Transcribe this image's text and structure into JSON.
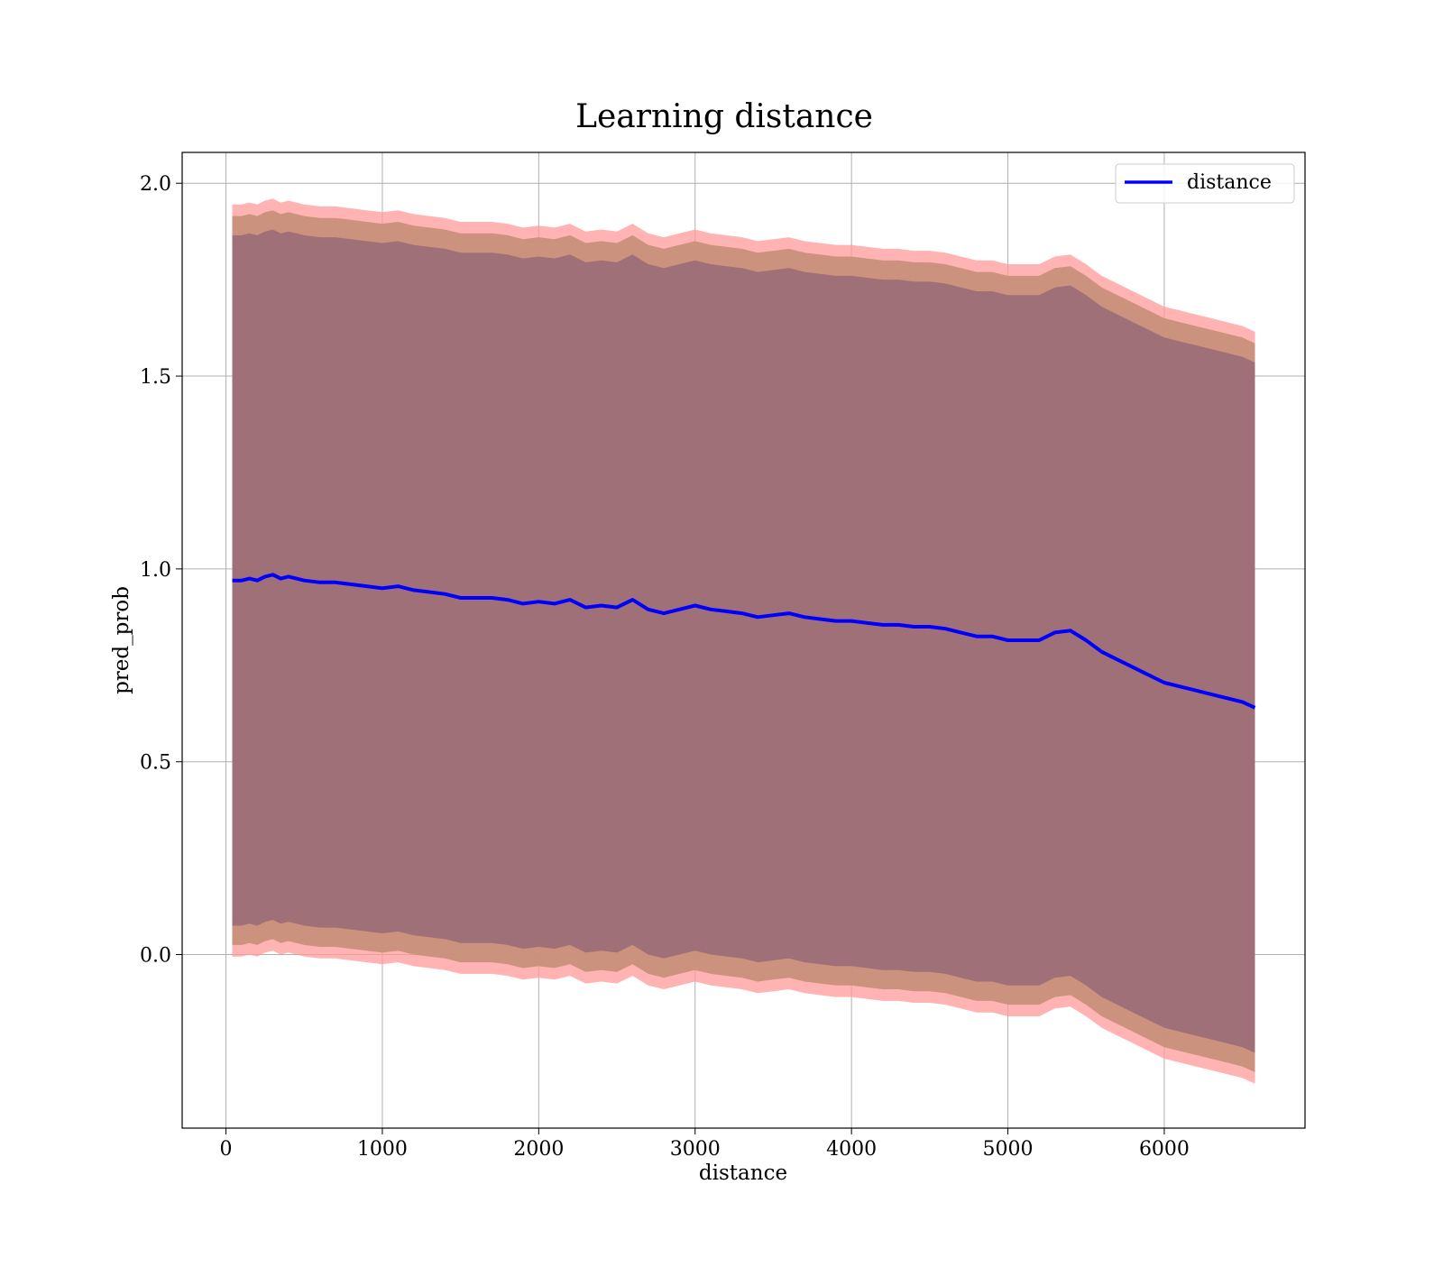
{
  "chart_data": {
    "type": "line",
    "title": "Learning distance",
    "xlabel": "distance",
    "ylabel": "pred_prob",
    "xlim": [
      -280,
      6900
    ],
    "ylim": [
      -0.45,
      2.08
    ],
    "xticks": [
      0,
      1000,
      2000,
      3000,
      4000,
      5000,
      6000
    ],
    "yticks": [
      0.0,
      0.5,
      1.0,
      1.5,
      2.0
    ],
    "xtick_labels": [
      "0",
      "1000",
      "2000",
      "3000",
      "4000",
      "5000",
      "6000"
    ],
    "ytick_labels": [
      "0.0",
      "0.5",
      "1.0",
      "1.5",
      "2.0"
    ],
    "grid": true,
    "legend": {
      "position": "top-right",
      "entries": [
        "distance"
      ]
    },
    "colors": {
      "line": "#0000ff",
      "outer_band": "#ff9999",
      "middle_band": "#c8907a",
      "inner_band": "#a07078"
    },
    "series": [
      {
        "name": "distance",
        "x": [
          40,
          100,
          150,
          200,
          250,
          300,
          350,
          400,
          450,
          500,
          600,
          700,
          800,
          900,
          1000,
          1100,
          1200,
          1300,
          1400,
          1500,
          1600,
          1700,
          1800,
          1900,
          2000,
          2100,
          2200,
          2300,
          2400,
          2500,
          2600,
          2700,
          2800,
          2900,
          3000,
          3100,
          3200,
          3300,
          3400,
          3500,
          3600,
          3700,
          3800,
          3900,
          4000,
          4100,
          4200,
          4300,
          4400,
          4500,
          4600,
          4700,
          4800,
          4900,
          5000,
          5100,
          5200,
          5300,
          5400,
          5500,
          5600,
          5700,
          5800,
          5900,
          6000,
          6100,
          6200,
          6300,
          6400,
          6500,
          6580
        ],
        "values": [
          0.97,
          0.97,
          0.975,
          0.97,
          0.98,
          0.985,
          0.975,
          0.98,
          0.975,
          0.97,
          0.965,
          0.965,
          0.96,
          0.955,
          0.95,
          0.955,
          0.945,
          0.94,
          0.935,
          0.925,
          0.925,
          0.925,
          0.92,
          0.91,
          0.915,
          0.91,
          0.92,
          0.9,
          0.905,
          0.9,
          0.92,
          0.895,
          0.885,
          0.895,
          0.905,
          0.895,
          0.89,
          0.885,
          0.875,
          0.88,
          0.885,
          0.875,
          0.87,
          0.865,
          0.865,
          0.86,
          0.855,
          0.855,
          0.85,
          0.85,
          0.845,
          0.835,
          0.825,
          0.825,
          0.815,
          0.815,
          0.815,
          0.835,
          0.84,
          0.815,
          0.785,
          0.765,
          0.745,
          0.725,
          0.705,
          0.695,
          0.685,
          0.675,
          0.665,
          0.655,
          0.64
        ]
      }
    ],
    "bands": [
      {
        "role": "outer",
        "offset": [
          0.975,
          0.975,
          0.975,
          0.975,
          0.975,
          0.975,
          0.975,
          0.975,
          0.975,
          0.975,
          0.975,
          0.975,
          0.975,
          0.975,
          0.975,
          0.975,
          0.975,
          0.975,
          0.975,
          0.975,
          0.975,
          0.975,
          0.975,
          0.975,
          0.975,
          0.975,
          0.975,
          0.975,
          0.975,
          0.975,
          0.975,
          0.975,
          0.975,
          0.975,
          0.975,
          0.975,
          0.975,
          0.975,
          0.975,
          0.975,
          0.975,
          0.975,
          0.975,
          0.975,
          0.975,
          0.975,
          0.975,
          0.975,
          0.975,
          0.975,
          0.975,
          0.975,
          0.975,
          0.975,
          0.975,
          0.975,
          0.975,
          0.975,
          0.975,
          0.975,
          0.975,
          0.975,
          0.975,
          0.975,
          0.975,
          0.975,
          0.975,
          0.975,
          0.975,
          0.975,
          0.975
        ]
      },
      {
        "role": "middle",
        "offset": [
          0.945,
          0.945,
          0.945,
          0.945,
          0.945,
          0.945,
          0.945,
          0.945,
          0.945,
          0.945,
          0.945,
          0.945,
          0.945,
          0.945,
          0.945,
          0.945,
          0.945,
          0.945,
          0.945,
          0.945,
          0.945,
          0.945,
          0.945,
          0.945,
          0.945,
          0.945,
          0.945,
          0.945,
          0.945,
          0.945,
          0.945,
          0.945,
          0.945,
          0.945,
          0.945,
          0.945,
          0.945,
          0.945,
          0.945,
          0.945,
          0.945,
          0.945,
          0.945,
          0.945,
          0.945,
          0.945,
          0.945,
          0.945,
          0.945,
          0.945,
          0.945,
          0.945,
          0.945,
          0.945,
          0.945,
          0.945,
          0.945,
          0.945,
          0.945,
          0.945,
          0.945,
          0.945,
          0.945,
          0.945,
          0.945,
          0.945,
          0.945,
          0.945,
          0.945,
          0.945,
          0.945
        ]
      },
      {
        "role": "inner",
        "offset": [
          0.895,
          0.895,
          0.895,
          0.895,
          0.895,
          0.895,
          0.895,
          0.895,
          0.895,
          0.895,
          0.895,
          0.895,
          0.895,
          0.895,
          0.895,
          0.895,
          0.895,
          0.895,
          0.895,
          0.895,
          0.895,
          0.895,
          0.895,
          0.895,
          0.895,
          0.895,
          0.895,
          0.895,
          0.895,
          0.895,
          0.895,
          0.895,
          0.895,
          0.895,
          0.895,
          0.895,
          0.895,
          0.895,
          0.895,
          0.895,
          0.895,
          0.895,
          0.895,
          0.895,
          0.895,
          0.895,
          0.895,
          0.895,
          0.895,
          0.895,
          0.895,
          0.895,
          0.895,
          0.895,
          0.895,
          0.895,
          0.895,
          0.895,
          0.895,
          0.895,
          0.895,
          0.895,
          0.895,
          0.895,
          0.895,
          0.895,
          0.895,
          0.895,
          0.895,
          0.895,
          0.895
        ]
      }
    ]
  }
}
